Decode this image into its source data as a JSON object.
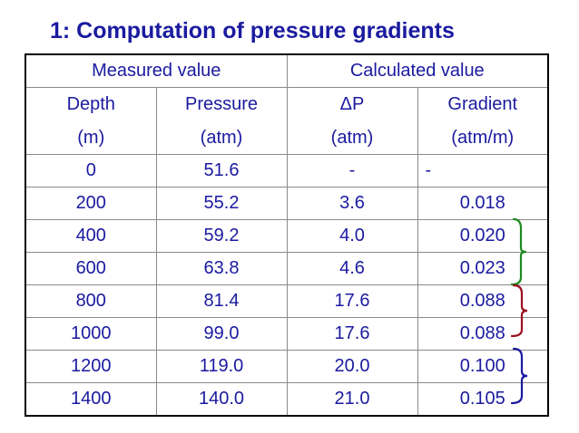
{
  "title": "1: Computation of pressure gradients",
  "colors": {
    "text": "#1a1aa0",
    "brace_green": "#1f8a1f",
    "brace_red": "#9a1020",
    "brace_blue": "#1a1aa0"
  },
  "table": {
    "group_headers": [
      "Measured value",
      "Calculated value"
    ],
    "columns": [
      {
        "name": "Depth",
        "unit": "(m)"
      },
      {
        "name": "Pressure",
        "unit": "(atm)"
      },
      {
        "name": "ΔP",
        "unit": "(atm)"
      },
      {
        "name": "Gradient",
        "unit": "(atm/m)"
      }
    ],
    "rows": [
      [
        "0",
        "51.6",
        "-",
        "-"
      ],
      [
        "200",
        "55.2",
        "3.6",
        "0.018"
      ],
      [
        "400",
        "59.2",
        "4.0",
        "0.020"
      ],
      [
        "600",
        "63.8",
        "4.6",
        "0.023"
      ],
      [
        "800",
        "81.4",
        "17.6",
        "0.088"
      ],
      [
        "1000",
        "99.0",
        "17.6",
        "0.088"
      ],
      [
        "1200",
        "119.0",
        "20.0",
        "0.100"
      ],
      [
        "1400",
        "140.0",
        "21.0",
        "0.105"
      ]
    ]
  }
}
